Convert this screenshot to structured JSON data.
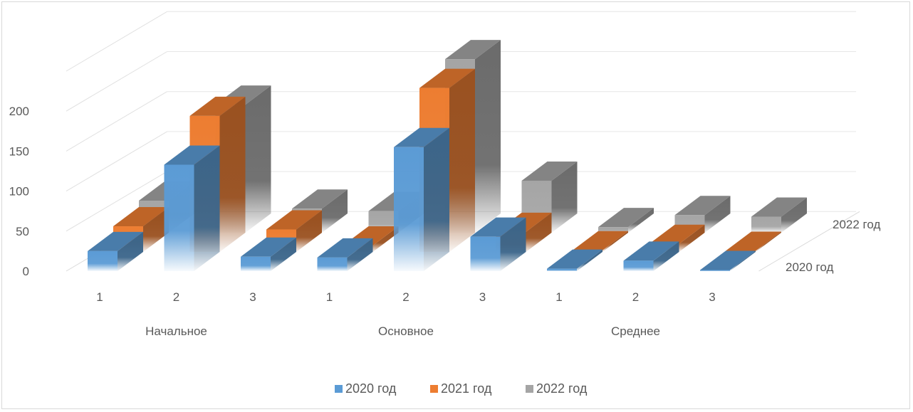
{
  "chart_data": {
    "type": "bar",
    "subtype": "3d-column",
    "categories": [
      {
        "group": "Начальное",
        "label": "1"
      },
      {
        "group": "Начальное",
        "label": "2"
      },
      {
        "group": "Начальное",
        "label": "3"
      },
      {
        "group": "Основное",
        "label": "1"
      },
      {
        "group": "Основное",
        "label": "2"
      },
      {
        "group": "Основное",
        "label": "3"
      },
      {
        "group": "Среднее",
        "label": "1"
      },
      {
        "group": "Среднее",
        "label": "2"
      },
      {
        "group": "Среднее",
        "label": "3"
      }
    ],
    "groups": [
      "Начальное",
      "Основное",
      "Среднее"
    ],
    "series": [
      {
        "name": "2020 год",
        "color": "#5B9BD5",
        "values": [
          25,
          133,
          18,
          17,
          155,
          43,
          3,
          13,
          1
        ]
      },
      {
        "name": "2021 год",
        "color": "#ED7D31",
        "values": [
          32,
          170,
          28,
          8,
          205,
          25,
          2,
          10,
          0
        ]
      },
      {
        "name": "2022 год",
        "color": "#A5A5A5",
        "values": [
          40,
          160,
          30,
          27,
          217,
          65,
          7,
          22,
          20
        ]
      }
    ],
    "y_ticks": [
      "0",
      "50",
      "100",
      "150",
      "200"
    ],
    "ylim": [
      0,
      250
    ],
    "depth_axis_labels": [
      "2020 год",
      "2022 год"
    ],
    "title": "",
    "xlabel": "",
    "ylabel": "",
    "grid": true,
    "legend": "bottom"
  }
}
